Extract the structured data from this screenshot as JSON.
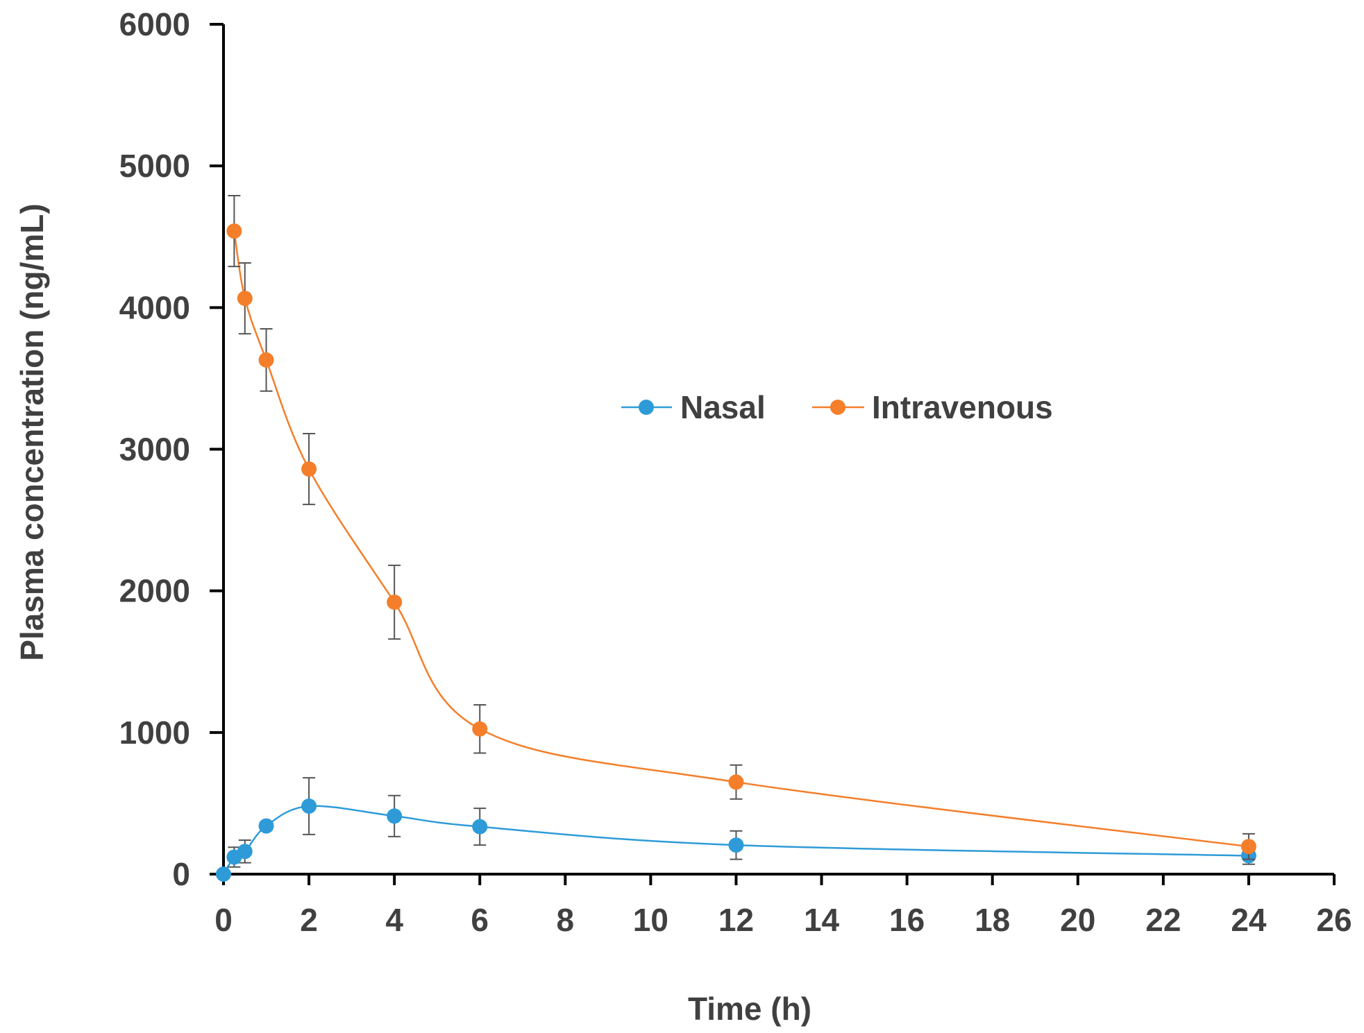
{
  "chart_data": {
    "type": "line",
    "title": "",
    "xlabel": "Time (h)",
    "ylabel": "Plasma concentration (ng/mL)",
    "xlim": [
      0,
      26
    ],
    "ylim": [
      0,
      6000
    ],
    "xticks": [
      0,
      2,
      4,
      6,
      8,
      10,
      12,
      14,
      16,
      18,
      20,
      22,
      24,
      26
    ],
    "yticks": [
      0,
      1000,
      2000,
      3000,
      4000,
      5000,
      6000
    ],
    "grid": false,
    "legend_position": "center-right",
    "series": [
      {
        "name": "Nasal",
        "color": "#2e9bd8",
        "x": [
          0,
          0.25,
          0.5,
          1,
          2,
          4,
          6,
          12,
          24
        ],
        "y": [
          0,
          120,
          160,
          340,
          480,
          410,
          335,
          205,
          130
        ],
        "error": [
          0,
          70,
          80,
          30,
          200,
          145,
          130,
          100,
          60
        ]
      },
      {
        "name": "Intravenous",
        "color": "#f47e2a",
        "x": [
          0.25,
          0.5,
          1,
          2,
          4,
          6,
          12,
          24
        ],
        "y": [
          4540,
          4065,
          3630,
          2860,
          1920,
          1025,
          650,
          195
        ],
        "error": [
          250,
          250,
          220,
          250,
          260,
          170,
          120,
          90
        ]
      }
    ]
  }
}
